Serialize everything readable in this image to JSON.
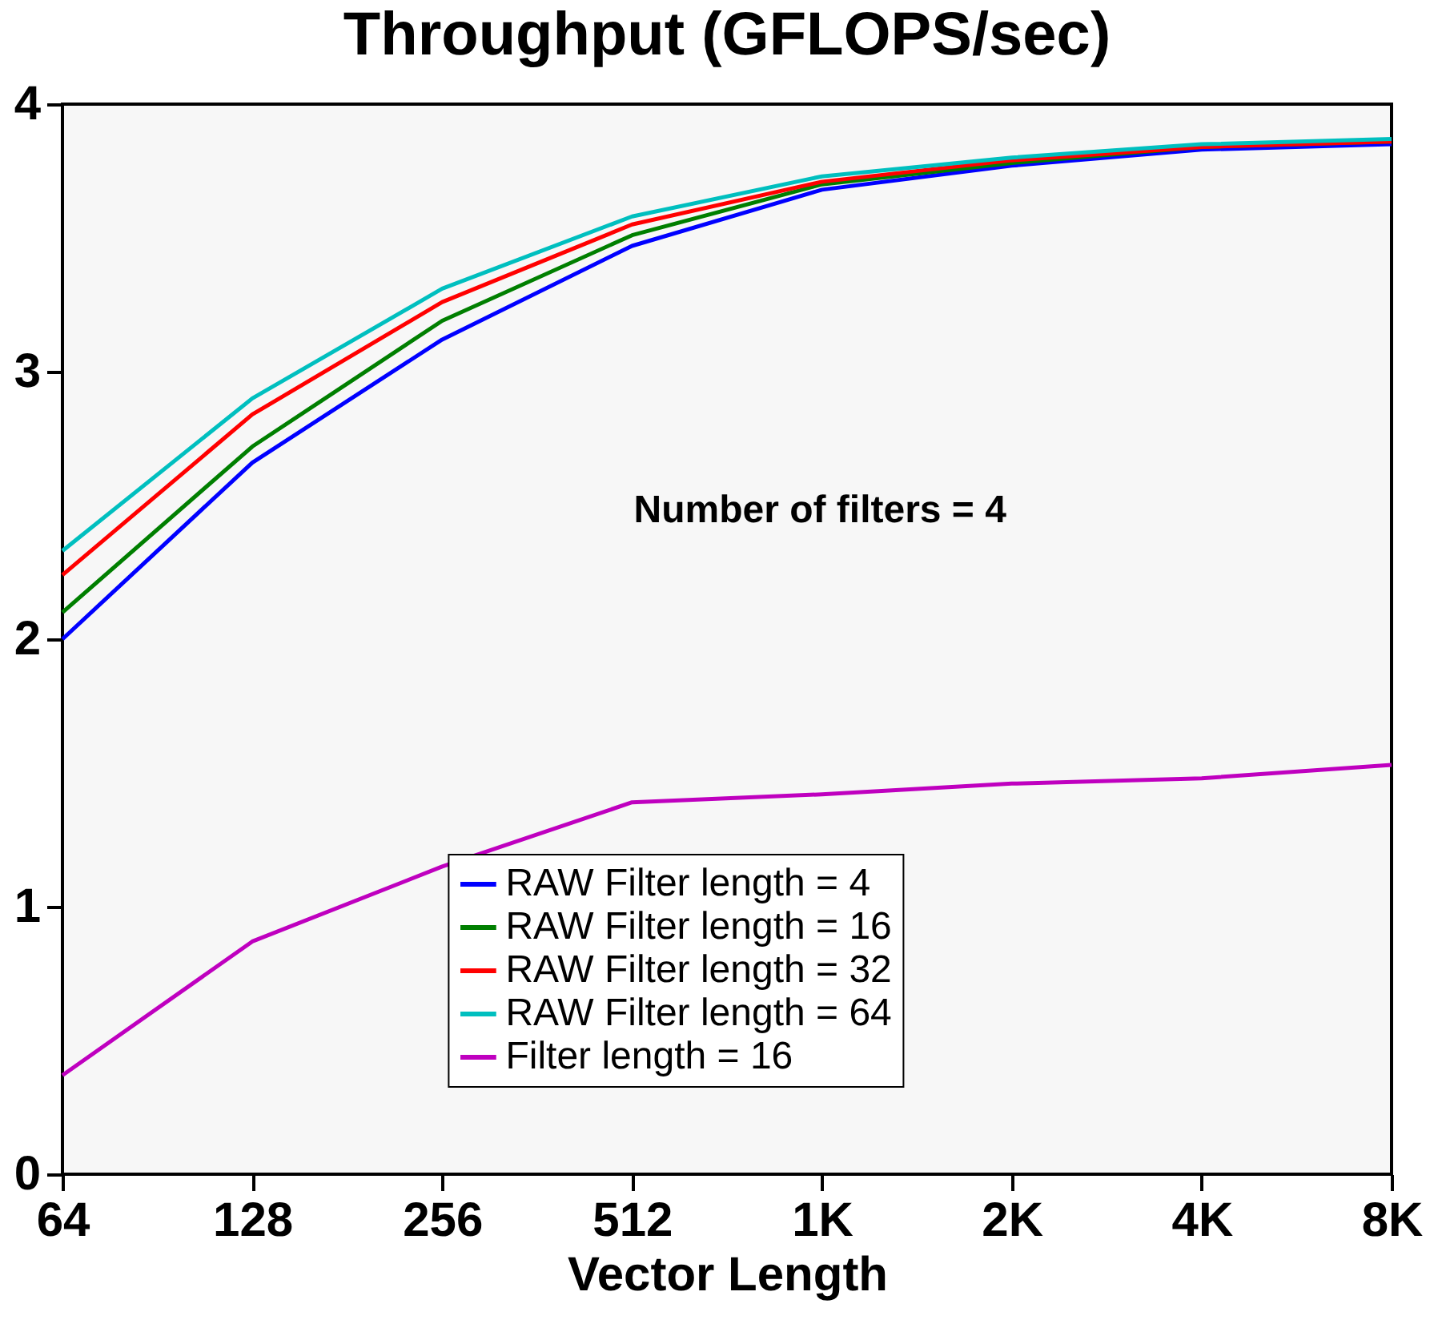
{
  "chart_data": {
    "type": "line",
    "title": "Throughput (GFLOPS/sec)",
    "xlabel": "Vector Length",
    "x": [
      64,
      128,
      256,
      512,
      1024,
      2048,
      4096,
      8192
    ],
    "series": [
      {
        "name": "RAW Filter length = 4",
        "color": "#0000ff",
        "values": [
          2.0,
          2.66,
          3.12,
          3.47,
          3.68,
          3.77,
          3.83,
          3.85
        ]
      },
      {
        "name": "RAW Filter length = 16",
        "color": "#007f00",
        "values": [
          2.1,
          2.72,
          3.19,
          3.51,
          3.7,
          3.78,
          3.84,
          3.86
        ]
      },
      {
        "name": "RAW Filter length = 32",
        "color": "#ff0000",
        "values": [
          2.24,
          2.84,
          3.26,
          3.55,
          3.71,
          3.79,
          3.84,
          3.86
        ]
      },
      {
        "name": "RAW Filter length = 64",
        "color": "#00bfbf",
        "values": [
          2.33,
          2.9,
          3.31,
          3.58,
          3.73,
          3.8,
          3.85,
          3.87
        ]
      },
      {
        "name": "Filter length = 16",
        "color": "#bf00bf",
        "values": [
          0.37,
          0.87,
          1.15,
          1.39,
          1.42,
          1.46,
          1.48,
          1.53
        ]
      }
    ],
    "log": "x",
    "xlim": [
      64,
      8192
    ],
    "xticks": [
      64,
      128,
      256,
      512,
      {
        "value": 1024,
        "label": "1K"
      },
      {
        "value": 2048,
        "label": "2K"
      },
      {
        "value": 4096,
        "label": "4K"
      },
      {
        "value": 8192,
        "label": "8K"
      }
    ],
    "ylim": [
      0,
      4
    ],
    "yticks": [
      0,
      1,
      2,
      3,
      4
    ],
    "annotations": [
      "Number of filters = 4"
    ],
    "legend": "bottom",
    "grid": false,
    "marker": "none",
    "line_style": "solid"
  }
}
